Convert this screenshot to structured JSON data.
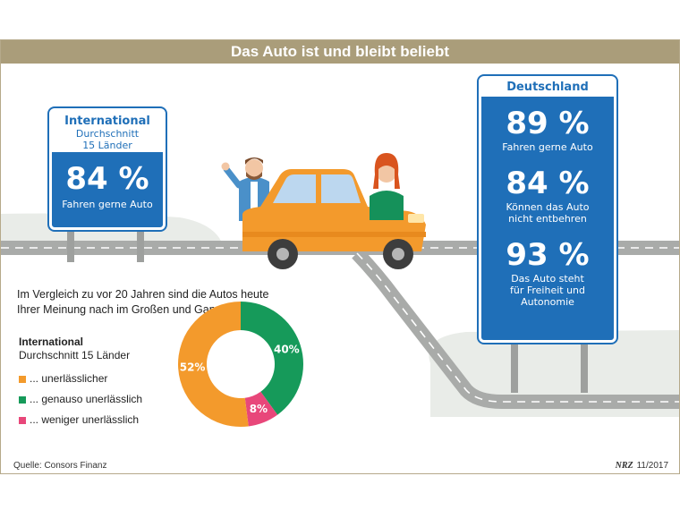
{
  "title": "Das Auto ist und bleibt beliebt",
  "international_sign": {
    "heading": "International",
    "sub1": "Durchschnitt",
    "sub2": "15 Länder",
    "value": "84 %",
    "label": "Fahren gerne Auto"
  },
  "germany_sign": {
    "heading": "Deutschland",
    "stats": [
      {
        "value": "89 %",
        "label1": "Fahren gerne Auto",
        "label2": "",
        "label3": ""
      },
      {
        "value": "84 %",
        "label1": "Können das Auto",
        "label2": "nicht entbehren",
        "label3": ""
      },
      {
        "value": "93 %",
        "label1": "Das Auto steht",
        "label2": "für Freiheit und",
        "label3": "Autonomie"
      }
    ]
  },
  "question": {
    "line1": "Im Vergleich zu vor 20 Jahren sind die Autos heute",
    "line2": "Ihrer Meinung nach im Großen und Ganzen ...?"
  },
  "legend": {
    "title1": "International",
    "title2": "Durchschnitt 15 Länder"
  },
  "chart_data": {
    "type": "pie",
    "categories": [
      "... unerlässlicher",
      "... genauso unerlässlich",
      "... weniger unerlässlich"
    ],
    "values": [
      52,
      40,
      8
    ],
    "labels": [
      "52%",
      "40%",
      "8%"
    ],
    "colors": [
      "#f39a2c",
      "#169a5a",
      "#e8477a"
    ],
    "donut": true,
    "legend_position": "left"
  },
  "source": "Quelle: Consors Finanz",
  "credit": {
    "logo": "NRZ",
    "date": "11/2017"
  },
  "colors": {
    "sign_blue": "#1f6fb8",
    "car_orange": "#f39a2c",
    "road_gray": "#a9aba9"
  }
}
